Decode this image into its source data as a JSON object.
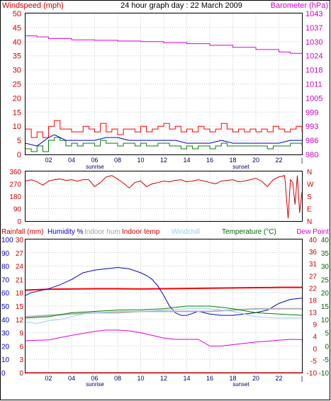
{
  "chart_data": [
    {
      "type": "line",
      "title": "24 hour graph day : 22 March 2009",
      "left_label": "Windspeed (mph)",
      "right_label": "Barometer (hPa)",
      "left_ticks": [
        "0",
        "5",
        "10",
        "15",
        "20",
        "25",
        "30",
        "35",
        "40",
        "45",
        "50"
      ],
      "right_ticks": [
        "980",
        "986",
        "993",
        "999",
        "1005",
        "1011",
        "1018",
        "1024",
        "1030",
        "1037",
        "1043"
      ],
      "ylim_left": [
        0,
        50
      ],
      "ylim_right": [
        980,
        1043
      ],
      "x_ticks": [
        "02",
        "04",
        "06",
        "08",
        "10",
        "12",
        "14",
        "16",
        "18",
        "20",
        "22"
      ],
      "sunrise_label": "sunrise",
      "sunset_label": "sunset",
      "colors": {
        "gust": "#ff0000",
        "average": "#008000",
        "wind": "#0000cc",
        "barometer": "#dd00dd"
      },
      "series": [
        {
          "key": "gust",
          "x": [
            0,
            0.5,
            1,
            1.5,
            2,
            2.5,
            3,
            3.5,
            4,
            4.5,
            5,
            5.5,
            6,
            6.5,
            7,
            7.5,
            8,
            8.5,
            9,
            9.5,
            10,
            10.5,
            11,
            11.5,
            12,
            12.5,
            13,
            13.5,
            14,
            14.5,
            15,
            15.5,
            16,
            16.5,
            17,
            17.5,
            18,
            18.5,
            19,
            19.5,
            20,
            20.5,
            21,
            21.5,
            22,
            22.5,
            23,
            23.5,
            24
          ],
          "values": [
            9,
            6,
            8,
            6,
            10,
            12,
            9,
            9,
            8,
            8,
            10,
            9,
            8,
            11,
            8,
            9,
            7,
            9,
            9,
            8,
            10,
            8,
            9,
            10,
            11,
            9,
            10,
            8,
            9,
            8,
            10,
            9,
            8,
            9,
            11,
            9,
            8,
            9,
            8,
            9,
            8,
            9,
            8,
            10,
            9,
            8,
            9,
            10,
            8
          ]
        },
        {
          "key": "average",
          "x": [
            0,
            0.5,
            1,
            1.5,
            2,
            2.5,
            3,
            3.5,
            4,
            4.5,
            5,
            5.5,
            6,
            6.5,
            7,
            7.5,
            8,
            8.5,
            9,
            9.5,
            10,
            10.5,
            11,
            11.5,
            12,
            12.5,
            13,
            13.5,
            14,
            14.5,
            15,
            15.5,
            16,
            16.5,
            17,
            17.5,
            18,
            18.5,
            19,
            19.5,
            20,
            20.5,
            21,
            21.5,
            22,
            22.5,
            23,
            23.5,
            24
          ],
          "values": [
            2,
            1,
            3,
            1,
            5,
            6,
            5,
            3,
            4,
            3,
            4,
            4,
            3,
            5,
            4,
            4,
            3,
            4,
            4,
            3,
            4,
            3,
            3,
            4,
            4,
            3,
            3,
            2,
            3,
            2,
            3,
            3,
            2,
            3,
            4,
            3,
            3,
            3,
            3,
            3,
            3,
            3,
            2,
            3,
            3,
            3,
            4,
            4,
            3
          ]
        },
        {
          "key": "wind",
          "x": [
            0,
            1,
            2,
            2.5,
            3,
            3.5,
            4,
            5,
            6,
            7,
            8,
            9,
            10,
            11,
            12,
            13,
            14,
            15,
            16,
            17,
            18,
            19,
            20,
            21,
            22,
            23,
            24
          ],
          "values": [
            4,
            3,
            6,
            7,
            6,
            5,
            5,
            5,
            5,
            6,
            6,
            5,
            5,
            5,
            5,
            5,
            4,
            4,
            4,
            5,
            4,
            4,
            4,
            4,
            4,
            5,
            5
          ]
        },
        {
          "key": "barometer",
          "x": [
            0,
            1,
            2,
            4,
            6,
            8,
            10,
            12,
            14,
            16,
            18,
            20,
            22,
            23,
            24
          ],
          "values": [
            1033,
            1032.5,
            1031.8,
            1031.2,
            1031,
            1030.7,
            1030.4,
            1030,
            1029.5,
            1028.8,
            1027.9,
            1026.9,
            1025.8,
            1025.2,
            1024.8
          ]
        }
      ]
    },
    {
      "type": "line",
      "left_ticks": [
        "360",
        "270",
        "180",
        "90",
        "0"
      ],
      "right_ticks": [
        "N",
        "W",
        "S",
        "E",
        "N"
      ],
      "ylim": [
        0,
        360
      ],
      "x_ticks": [
        "02",
        "04",
        "06",
        "08",
        "10",
        "12",
        "14",
        "16",
        "18",
        "20",
        "22"
      ],
      "colors": {
        "direction": "#cc0000"
      },
      "series": [
        {
          "key": "direction",
          "x": [
            0,
            0.5,
            1,
            1.5,
            2,
            2.5,
            3,
            3.5,
            4,
            4.5,
            5,
            5.5,
            6,
            6.5,
            7,
            7.5,
            8,
            8.5,
            9,
            9.5,
            10,
            10.5,
            11,
            11.5,
            12,
            12.5,
            13,
            13.5,
            14,
            14.5,
            15,
            15.5,
            16,
            16.5,
            17,
            17.5,
            18,
            18.5,
            19,
            19.5,
            20,
            20.5,
            21,
            21.5,
            22,
            22.5,
            22.8,
            23,
            23.2,
            23.4,
            23.6,
            23.8,
            24
          ],
          "values": [
            290,
            300,
            285,
            260,
            290,
            300,
            305,
            295,
            300,
            290,
            300,
            300,
            250,
            280,
            320,
            330,
            305,
            275,
            240,
            280,
            290,
            250,
            270,
            280,
            290,
            285,
            295,
            300,
            285,
            290,
            300,
            290,
            280,
            270,
            290,
            295,
            300,
            285,
            290,
            300,
            310,
            290,
            250,
            300,
            320,
            330,
            20,
            300,
            280,
            120,
            330,
            60,
            210
          ]
        }
      ]
    },
    {
      "type": "line",
      "labels": [
        "Rainfall (mm)",
        "Humidity %",
        "Indoor hum",
        "Indoor temp",
        "Windchill",
        "Temperature (°C)",
        "Dew Point"
      ],
      "humidity_ticks": [
        "0",
        "10",
        "20",
        "30",
        "40",
        "50",
        "60",
        "70",
        "80",
        "90",
        "100"
      ],
      "rain_ticks": [
        "0",
        "3",
        "6",
        "9",
        "12",
        "15",
        "18",
        "21",
        "24",
        "27",
        "30"
      ],
      "temp_ticks": [
        "-10",
        "-5",
        "0",
        "4",
        "9",
        "13",
        "18",
        "22",
        "27",
        "31",
        "36",
        "40"
      ],
      "dewpoint_ticks": [
        "-10",
        "-5",
        "0",
        "5",
        "10",
        "15",
        "20",
        "25",
        "30",
        "35",
        "40"
      ],
      "ylim_humidity": [
        0,
        100
      ],
      "ylim_rain": [
        0,
        30
      ],
      "ylim_temp": [
        -10,
        40
      ],
      "x_ticks": [
        "02",
        "04",
        "06",
        "08",
        "10",
        "12",
        "14",
        "16",
        "18",
        "20",
        "22"
      ],
      "sunrise_label": "sunrise",
      "sunset_label": "sunset",
      "colors": {
        "rain": "#ff0000",
        "humidity": "#0000cc",
        "indoor_hum": "#b0b0b0",
        "indoor_temp": "#ff0000",
        "windchill": "#99ccee",
        "temperature": "#008000",
        "dewpoint": "#dd00dd"
      },
      "series": [
        {
          "key": "indoor_temp",
          "axis": "temp",
          "x": [
            0,
            2,
            4,
            6,
            8,
            10,
            12,
            14,
            16,
            18,
            20,
            22,
            24
          ],
          "values": [
            21,
            21.3,
            21.4,
            21.5,
            21.5,
            21.4,
            21.5,
            21.6,
            21.7,
            21.8,
            21.9,
            22,
            22
          ]
        },
        {
          "key": "humidity",
          "axis": "humidity",
          "x": [
            0,
            0.5,
            1,
            2,
            3,
            4,
            5,
            6,
            7,
            8,
            9,
            10,
            10.5,
            11,
            11.5,
            12,
            12.5,
            13,
            13.5,
            14,
            15,
            16,
            17,
            18,
            19,
            20,
            21,
            22,
            23,
            24
          ],
          "values": [
            58,
            60,
            61,
            63,
            66,
            70,
            75,
            77,
            78,
            79,
            78,
            75,
            73,
            70,
            65,
            58,
            50,
            45,
            43,
            43,
            46,
            44,
            43,
            43,
            44,
            45,
            47,
            52,
            55,
            56
          ]
        },
        {
          "key": "indoor_hum",
          "axis": "humidity",
          "x": [
            0,
            2,
            4,
            6,
            8,
            10,
            12,
            14,
            16,
            18,
            20,
            22,
            24
          ],
          "values": [
            42,
            43,
            44,
            45,
            45,
            46,
            46,
            46,
            46,
            47,
            48,
            48,
            48
          ]
        },
        {
          "key": "temperature",
          "axis": "temp",
          "x": [
            0,
            2,
            4,
            6,
            8,
            10,
            12,
            14,
            16,
            18,
            20,
            22,
            24
          ],
          "values": [
            10.5,
            11,
            12.5,
            13,
            13.5,
            13.6,
            14,
            15,
            15,
            14,
            12.5,
            12,
            11.5
          ]
        },
        {
          "key": "windchill",
          "axis": "temp",
          "x": [
            0,
            1,
            2,
            3,
            4,
            5,
            6,
            8,
            10,
            12,
            14,
            16,
            18,
            20,
            22,
            24
          ],
          "values": [
            9,
            8.5,
            9.5,
            10,
            11,
            12,
            12.5,
            13,
            13,
            13.5,
            14,
            14,
            13,
            11,
            10.5,
            10.5
          ]
        },
        {
          "key": "dewpoint",
          "axis": "temp",
          "x": [
            0,
            2,
            4,
            6,
            7,
            8,
            9,
            10,
            11,
            12,
            13,
            14,
            15,
            16,
            17,
            18,
            19,
            20,
            21,
            22,
            23,
            24
          ],
          "values": [
            2,
            2.3,
            4,
            5.5,
            6,
            6,
            5.7,
            5,
            4,
            3,
            2.5,
            2.5,
            2.5,
            0,
            0,
            0.5,
            1,
            1.5,
            1.8,
            2.2,
            2.5,
            2.4
          ]
        },
        {
          "key": "rain",
          "axis": "rain",
          "x": [
            0,
            24
          ],
          "values": [
            0,
            0
          ]
        }
      ]
    }
  ]
}
